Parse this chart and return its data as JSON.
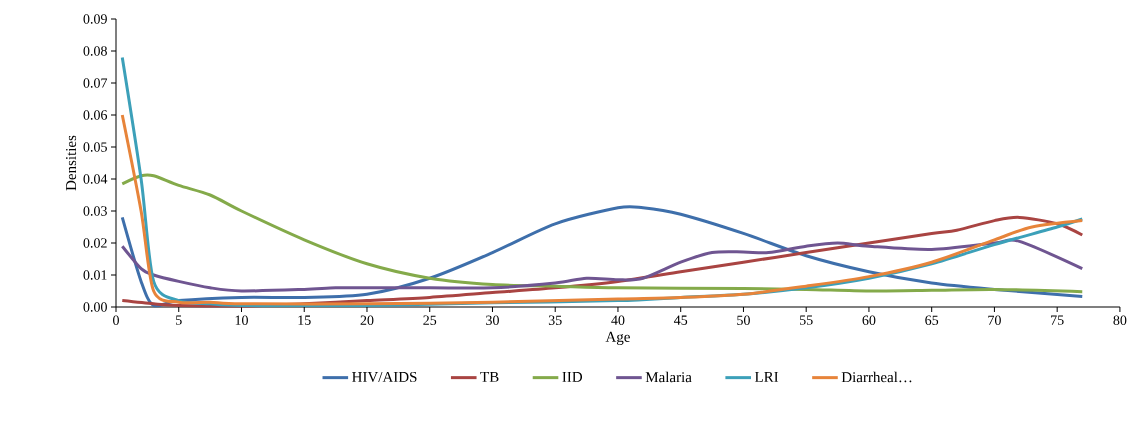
{
  "chart_data": {
    "type": "line",
    "xlabel": "Age",
    "ylabel": "Densities",
    "xlim": [
      0,
      80
    ],
    "xticks": [
      0,
      5,
      10,
      15,
      20,
      25,
      30,
      35,
      40,
      45,
      50,
      55,
      60,
      65,
      70,
      75,
      80
    ],
    "ylim": [
      0,
      0.09
    ],
    "yticks": [
      {
        "value": 0,
        "label": "0.00"
      },
      {
        "value": 0.01,
        "label": "0.01"
      },
      {
        "value": 0.02,
        "label": "0.02"
      },
      {
        "value": 0.03,
        "label": "0.03"
      },
      {
        "value": 0.04,
        "label": "0.04"
      },
      {
        "value": 0.05,
        "label": "0.05"
      },
      {
        "value": 0.06,
        "label": "0.06"
      },
      {
        "value": 0.07,
        "label": "0.07"
      },
      {
        "value": 0.08,
        "label": "0.08"
      },
      {
        "value": 0.09,
        "label": "0.09"
      }
    ],
    "grid": false,
    "legend": "bottom",
    "marker": "none",
    "line_style": "solid",
    "series": [
      {
        "name": "HIV/AIDS",
        "color": "#3e6fab",
        "x": [
          0.5,
          2,
          3,
          5,
          10,
          15,
          20,
          25,
          30,
          35,
          40,
          42,
          45,
          50,
          55,
          60,
          65,
          70,
          77
        ],
        "values": [
          0.028,
          0.008,
          0.0005,
          0.002,
          0.003,
          0.003,
          0.004,
          0.009,
          0.017,
          0.026,
          0.031,
          0.031,
          0.029,
          0.023,
          0.016,
          0.011,
          0.0075,
          0.0055,
          0.0033
        ]
      },
      {
        "name": "TB",
        "color": "#a94442",
        "x": [
          0.5,
          3,
          5,
          10,
          15,
          20,
          25,
          30,
          35,
          40,
          45,
          50,
          55,
          60,
          65,
          67,
          70,
          72,
          75,
          77
        ],
        "values": [
          0.002,
          0.001,
          0.0005,
          0.0003,
          0.001,
          0.002,
          0.003,
          0.0045,
          0.006,
          0.008,
          0.011,
          0.014,
          0.017,
          0.02,
          0.023,
          0.024,
          0.027,
          0.028,
          0.026,
          0.0225
        ]
      },
      {
        "name": "IID",
        "color": "#84aa4a",
        "x": [
          0.5,
          2,
          3,
          5,
          7.5,
          10,
          15,
          20,
          25,
          30,
          35,
          40,
          50,
          55,
          60,
          65,
          70,
          77
        ],
        "values": [
          0.0385,
          0.041,
          0.041,
          0.038,
          0.035,
          0.03,
          0.021,
          0.0135,
          0.009,
          0.007,
          0.0065,
          0.006,
          0.0058,
          0.0055,
          0.005,
          0.0052,
          0.0055,
          0.0048
        ]
      },
      {
        "name": "Malaria",
        "color": "#6f5591",
        "x": [
          0.5,
          2,
          3,
          5,
          7.5,
          10,
          15,
          17.5,
          20,
          25,
          30,
          35,
          37.5,
          40,
          42,
          45,
          47.5,
          50,
          52,
          55,
          57.5,
          60,
          65,
          70,
          72,
          77
        ],
        "values": [
          0.019,
          0.012,
          0.01,
          0.008,
          0.006,
          0.005,
          0.0055,
          0.006,
          0.006,
          0.006,
          0.006,
          0.0075,
          0.009,
          0.0085,
          0.009,
          0.014,
          0.017,
          0.0172,
          0.017,
          0.019,
          0.02,
          0.019,
          0.018,
          0.02,
          0.0205,
          0.012
        ]
      },
      {
        "name": "LRI",
        "color": "#3ca0b9",
        "x": [
          0.5,
          2,
          3,
          5,
          7.5,
          10,
          20,
          30,
          40,
          45,
          50,
          55,
          60,
          65,
          70,
          75,
          77
        ],
        "values": [
          0.078,
          0.04,
          0.008,
          0.002,
          0.001,
          0.0005,
          0.0005,
          0.0013,
          0.002,
          0.003,
          0.004,
          0.006,
          0.009,
          0.0135,
          0.0195,
          0.025,
          0.0275
        ]
      },
      {
        "name": "Diarrheal…",
        "color": "#e7843a",
        "x": [
          0.5,
          2,
          3,
          5,
          7.5,
          10,
          20,
          30,
          40,
          45,
          50,
          55,
          60,
          65,
          70,
          73,
          77
        ],
        "values": [
          0.06,
          0.03,
          0.005,
          0.0015,
          0.0015,
          0.001,
          0.001,
          0.0015,
          0.0025,
          0.003,
          0.004,
          0.0065,
          0.0095,
          0.014,
          0.021,
          0.025,
          0.027
        ]
      }
    ]
  }
}
